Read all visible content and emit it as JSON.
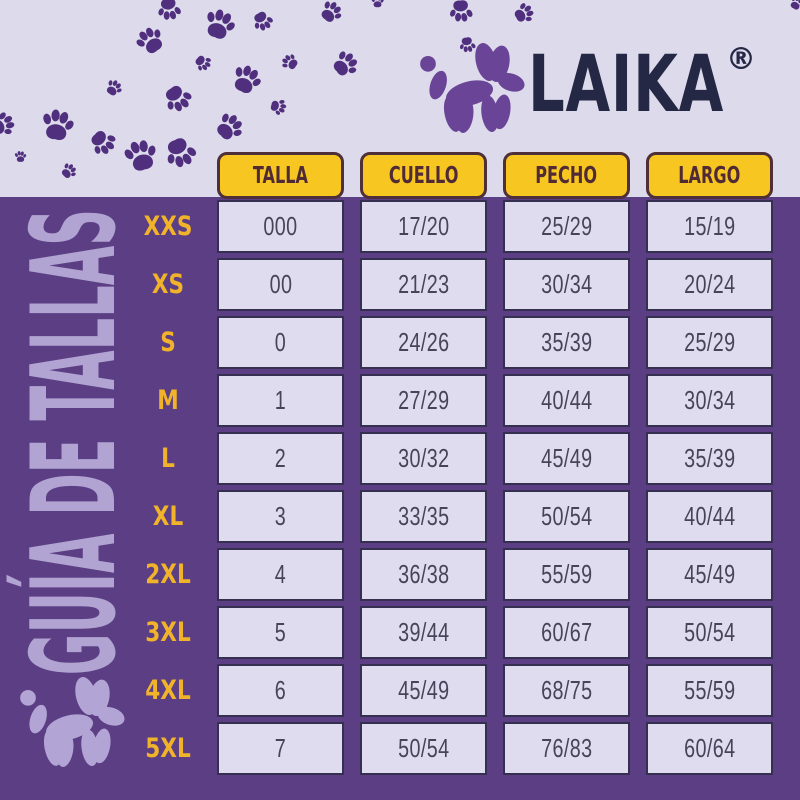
{
  "brand": {
    "name": "LAIKA",
    "registered_mark": "®"
  },
  "page_title": {
    "vertical_text": "GUÍA DE TALLAS"
  },
  "table": {
    "headers": [
      "TALLA",
      "CUELLO",
      "PECHO",
      "LARGO"
    ],
    "column_keys": [
      "talla",
      "cuello",
      "pecho",
      "largo"
    ],
    "rows": [
      {
        "size": "XXS",
        "talla": "000",
        "cuello": "17/20",
        "pecho": "25/29",
        "largo": "15/19"
      },
      {
        "size": "XS",
        "talla": "00",
        "cuello": "21/23",
        "pecho": "30/34",
        "largo": "20/24"
      },
      {
        "size": "S",
        "talla": "0",
        "cuello": "24/26",
        "pecho": "35/39",
        "largo": "25/29"
      },
      {
        "size": "M",
        "talla": "1",
        "cuello": "27/29",
        "pecho": "40/44",
        "largo": "30/34"
      },
      {
        "size": "L",
        "talla": "2",
        "cuello": "30/32",
        "pecho": "45/49",
        "largo": "35/39"
      },
      {
        "size": "XL",
        "talla": "3",
        "cuello": "33/35",
        "pecho": "50/54",
        "largo": "40/44"
      },
      {
        "size": "2XL",
        "talla": "4",
        "cuello": "36/38",
        "pecho": "55/59",
        "largo": "45/49"
      },
      {
        "size": "3XL",
        "talla": "5",
        "cuello": "39/44",
        "pecho": "60/67",
        "largo": "50/54"
      },
      {
        "size": "4XL",
        "talla": "6",
        "cuello": "45/49",
        "pecho": "68/75",
        "largo": "55/59"
      },
      {
        "size": "5XL",
        "talla": "7",
        "cuello": "50/54",
        "pecho": "76/83",
        "largo": "60/64"
      }
    ]
  },
  "icons": {
    "logo_dog": "balloon-dog-icon",
    "watermark_dog": "balloon-dog-icon",
    "decoration": "paw-print-icon"
  },
  "colors": {
    "background_top": "#dcdaeb",
    "panel_purple": "#5b3e83",
    "paw_purple": "#50307e",
    "header_yellow": "#f8c620",
    "header_border": "#4f3038",
    "header_text": "#502b35",
    "size_label_gold": "#f1b32a",
    "cell_background": "#dedcee",
    "cell_border": "#35304f",
    "cell_text": "#474459",
    "logo_navy": "#252845",
    "logo_dog_purple": "#6a4496",
    "watermark_lavender": "#b2a4d4",
    "vertical_title_lavender": "#b1a3d2"
  },
  "chart_data": {
    "type": "table",
    "title": "GUÍA DE TALLAS",
    "columns": [
      "TALLA",
      "CUELLO",
      "PECHO",
      "LARGO"
    ],
    "row_labels": [
      "XXS",
      "XS",
      "S",
      "M",
      "L",
      "XL",
      "2XL",
      "3XL",
      "4XL",
      "5XL"
    ],
    "rows": [
      [
        "000",
        "17/20",
        "25/29",
        "15/19"
      ],
      [
        "00",
        "21/23",
        "30/34",
        "20/24"
      ],
      [
        "0",
        "24/26",
        "35/39",
        "25/29"
      ],
      [
        "1",
        "27/29",
        "40/44",
        "30/34"
      ],
      [
        "2",
        "30/32",
        "45/49",
        "35/39"
      ],
      [
        "3",
        "33/35",
        "50/54",
        "40/44"
      ],
      [
        "4",
        "36/38",
        "55/59",
        "45/49"
      ],
      [
        "5",
        "39/44",
        "60/67",
        "50/54"
      ],
      [
        "6",
        "45/49",
        "68/75",
        "55/59"
      ],
      [
        "7",
        "50/54",
        "76/83",
        "60/64"
      ]
    ]
  }
}
